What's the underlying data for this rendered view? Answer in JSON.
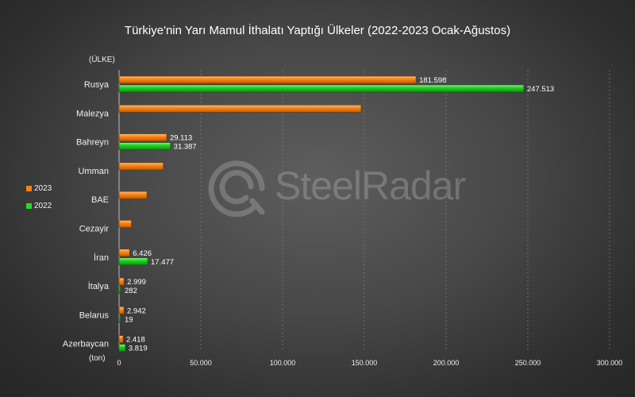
{
  "chart_data": {
    "type": "bar",
    "orientation": "horizontal",
    "title": "Türkiye'nin Yarı Mamul İthalatı Yaptığı Ülkeler (2022-2023 Ocak-Ağustos)",
    "ylabel": "(ÜLKE)",
    "xlabel": "(ton)",
    "xlim": [
      0,
      300000
    ],
    "x_ticks": [
      0,
      50000,
      100000,
      150000,
      200000,
      250000,
      300000
    ],
    "x_tick_labels": [
      "0",
      "50.000",
      "100.000",
      "150.000",
      "200.000",
      "250.000",
      "300.000"
    ],
    "grid": true,
    "legend_position": "left",
    "categories": [
      "Rusya",
      "Malezya",
      "Bahreyn",
      "Umman",
      "BAE",
      "Cezayir",
      "İran",
      "İtalya",
      "Belarus",
      "Azerbaycan"
    ],
    "series": [
      {
        "name": "2023",
        "color": "#ff7f0e",
        "values": [
          181598,
          148000,
          29113,
          27000,
          17000,
          7500,
          6426,
          2999,
          2942,
          2418
        ],
        "labels": [
          "181.598",
          "",
          "29.113",
          "",
          "",
          "",
          "6.426",
          "2.999",
          "2.942",
          "2.418"
        ]
      },
      {
        "name": "2022",
        "color": "#22dd22",
        "values": [
          247513,
          0,
          31387,
          0,
          0,
          0,
          17477,
          282,
          19,
          3819
        ],
        "labels": [
          "247.513",
          "",
          "31.387",
          "",
          "",
          "",
          "17.477",
          "282",
          "19",
          "3.819"
        ]
      }
    ]
  },
  "watermark": {
    "text": "SteelRadar",
    "icon": "steelradar-logo-icon"
  }
}
